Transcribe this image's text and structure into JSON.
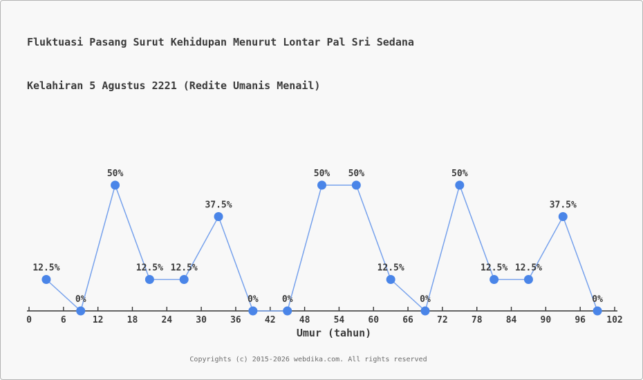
{
  "page": {
    "background": "#f8f8f8",
    "border_color": "#b3b3b3"
  },
  "title": {
    "line1": "Fluktuasi Pasang Surut Kehidupan Menurut Lontar Pal Sri Sedana",
    "line2": "Kelahiran 5 Agustus 2221 (Redite Umanis Menail)"
  },
  "footer": {
    "text": "Copyrights (c) 2015-2026 webdika.com. All rights reserved"
  },
  "chart_data": {
    "type": "line",
    "title": "Fluktuasi Pasang Surut Kehidupan Menurut Lontar Pal Sri Sedana Kelahiran 5 Agustus 2221 (Redite Umanis Menail)",
    "xlabel": "Umur (tahun)",
    "ylabel": "",
    "x": [
      3,
      9,
      15,
      21,
      27,
      33,
      39,
      45,
      51,
      57,
      63,
      69,
      75,
      81,
      87,
      93,
      99
    ],
    "values": [
      12.5,
      0,
      50,
      12.5,
      12.5,
      37.5,
      0,
      0,
      50,
      50,
      12.5,
      0,
      50,
      12.5,
      12.5,
      37.5,
      0
    ],
    "point_labels": [
      "12.5%",
      "0%",
      "50%",
      "12.5%",
      "12.5%",
      "37.5%",
      "0%",
      "0%",
      "50%",
      "50%",
      "12.5%",
      "0%",
      "50%",
      "12.5%",
      "12.5%",
      "37.5%",
      "0%"
    ],
    "x_ticks": [
      0,
      6,
      12,
      18,
      24,
      30,
      36,
      42,
      48,
      54,
      60,
      66,
      72,
      78,
      84,
      90,
      96,
      102
    ],
    "xlim": [
      0,
      102
    ],
    "ylim": [
      0,
      62.5
    ],
    "grid": false,
    "legend": "none",
    "colors": {
      "marker": "#4a85e8",
      "line": "#76a1ec",
      "axis": "#333333",
      "tick_label": "#3a3a3a",
      "data_label": "#3a3a3a"
    }
  }
}
